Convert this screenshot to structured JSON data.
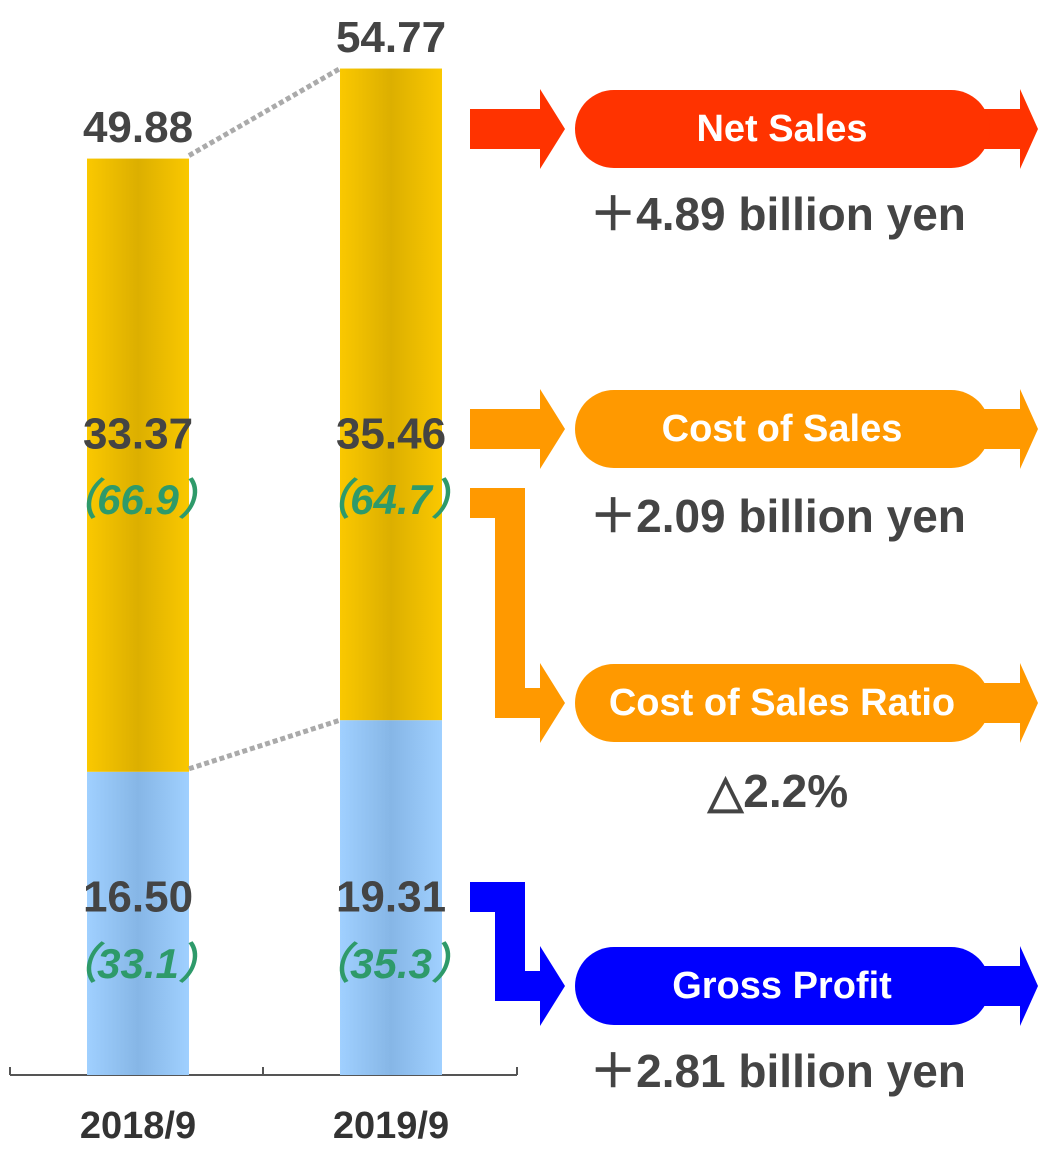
{
  "chart_data": {
    "type": "bar",
    "stacked": true,
    "categories": [
      "2018/9",
      "2019/9"
    ],
    "ylim": [
      0,
      58.5
    ],
    "series": [
      {
        "color": "#99ccff",
        "values": [
          16.5,
          19.31
        ],
        "value_labels": [
          "16.50",
          "19.31"
        ],
        "ratio_labels": [
          "（33.1）",
          "（35.3）"
        ]
      },
      {
        "color": "#f5c400",
        "values": [
          33.37,
          35.46
        ],
        "value_labels": [
          "33.37",
          "35.46"
        ],
        "ratio_labels": [
          "（66.9）",
          "（64.7）"
        ]
      }
    ],
    "totals": [
      49.88,
      54.77
    ],
    "annotations": [
      {
        "label": "Net Sales",
        "change": "＋4.89 billion yen",
        "color": "#ff3300"
      },
      {
        "label": "Cost of Sales",
        "change": "＋2.09 billion yen",
        "color": "#ff9900"
      },
      {
        "label": "Cost of Sales Ratio",
        "change": "△2.2%",
        "color": "#ff9900"
      },
      {
        "label": "Gross Profit",
        "change": "＋2.81 billion yen",
        "color": "#0000ff"
      }
    ]
  }
}
